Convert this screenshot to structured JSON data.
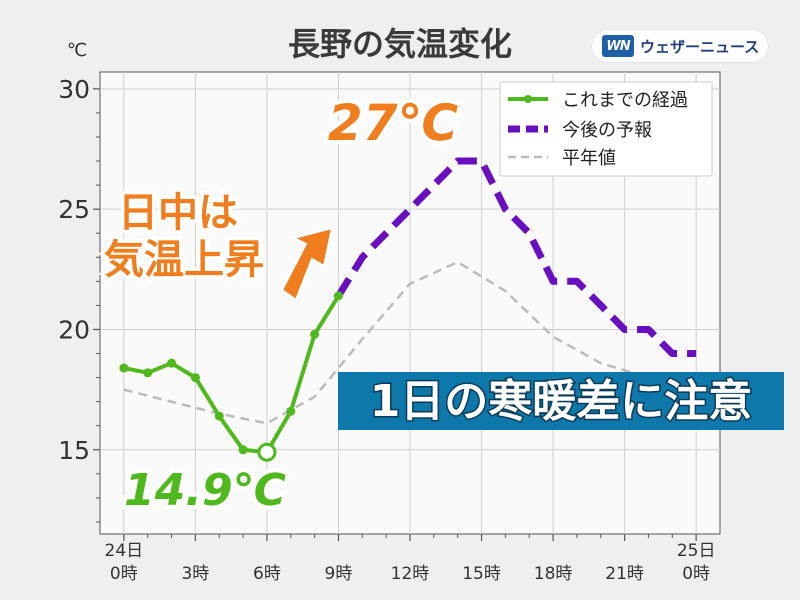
{
  "brand": {
    "mark": "WN",
    "name": "ウェザーニュース",
    "color": "#1f5fa8"
  },
  "chart_data": {
    "type": "line",
    "title": "長野の気温変化",
    "ylabel": "℃",
    "ylim": [
      11.5,
      30.7
    ],
    "xlim": [
      -1,
      25
    ],
    "yticks": [
      15,
      20,
      25,
      30
    ],
    "x_ticks": [
      0,
      3,
      6,
      9,
      12,
      15,
      18,
      21,
      24
    ],
    "x_tick_labels": [
      [
        "24日",
        "0時"
      ],
      [
        "",
        "3時"
      ],
      [
        "",
        "6時"
      ],
      [
        "",
        "9時"
      ],
      [
        "",
        "12時"
      ],
      [
        "",
        "15時"
      ],
      [
        "",
        "18時"
      ],
      [
        "",
        "21時"
      ],
      [
        "25日",
        "0時"
      ]
    ],
    "grid": true,
    "legend": "top-right",
    "series": [
      {
        "name": "これまでの経過",
        "color": "#4fb81c",
        "style": "solid-markers",
        "x": [
          0,
          1,
          2,
          3,
          4,
          5,
          6,
          7,
          8,
          9
        ],
        "values": [
          18.4,
          18.2,
          18.6,
          18.0,
          16.4,
          15.0,
          14.9,
          16.6,
          19.8,
          21.4
        ]
      },
      {
        "name": "今後の予報",
        "color": "#6a0fbf",
        "style": "thick-dashed-step",
        "x": [
          9,
          10,
          11,
          12,
          13,
          14,
          15,
          16,
          17,
          18,
          19,
          20,
          21,
          22,
          23,
          24
        ],
        "values": [
          21.4,
          23.0,
          24.0,
          25.0,
          26.0,
          27.0,
          27.0,
          25.0,
          24.0,
          22.0,
          22.0,
          21.0,
          20.0,
          20.0,
          19.0,
          19.0
        ]
      },
      {
        "name": "平年値",
        "color": "#bbbbbb",
        "style": "thin-dashed",
        "x": [
          0,
          2,
          4,
          6,
          8,
          10,
          12,
          14,
          16,
          18,
          20,
          22,
          24
        ],
        "values": [
          17.5,
          17.0,
          16.5,
          16.1,
          17.2,
          19.6,
          21.9,
          22.8,
          21.6,
          19.7,
          18.6,
          18.0,
          17.9
        ]
      }
    ],
    "annotations": {
      "max_label": "27℃",
      "min_label": "14.9℃",
      "rise_line1": "日中は",
      "rise_line2": "気温上昇",
      "banner": "1日の寒暖差に注意"
    },
    "colors": {
      "orange": "#f07d1e",
      "banner": "#0e78ab",
      "axis": "#555555",
      "grid": "#d0d0d0"
    }
  }
}
